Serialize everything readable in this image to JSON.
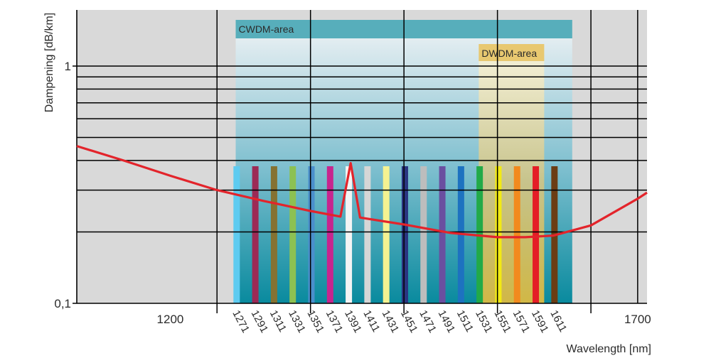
{
  "chart_data": {
    "type": "line",
    "xlabel": "Wavelength [nm]",
    "ylabel": "Dampening [dB/km]",
    "xlim": [
      1100,
      1710
    ],
    "ylim": [
      0.1,
      1.6
    ],
    "y_scale": "log",
    "x_ticks": [
      "1200",
      "1700"
    ],
    "y_ticks": [
      "0,1",
      "1"
    ],
    "grid": true,
    "areas": [
      {
        "label": "CWDM-area",
        "x_range": [
          1270,
          1630
        ],
        "color": "#57aebb"
      },
      {
        "label": "DWDM-area",
        "x_range": [
          1530,
          1600
        ],
        "color": "#e8c870"
      }
    ],
    "channels": [
      {
        "label": "1271",
        "x": 1271,
        "color": "#5ecbf0"
      },
      {
        "label": "1291",
        "x": 1291,
        "color": "#9c2a55"
      },
      {
        "label": "1311",
        "x": 1311,
        "color": "#857232"
      },
      {
        "label": "1331",
        "x": 1331,
        "color": "#8cc152"
      },
      {
        "label": "1351",
        "x": 1351,
        "color": "#4a8fcc"
      },
      {
        "label": "1371",
        "x": 1371,
        "color": "#c7258e"
      },
      {
        "label": "1391",
        "x": 1391,
        "color": "#f4f4f4"
      },
      {
        "label": "1411",
        "x": 1411,
        "color": "#d6d6d6"
      },
      {
        "label": "1431",
        "x": 1431,
        "color": "#f4f291"
      },
      {
        "label": "1451",
        "x": 1451,
        "color": "#2a3580"
      },
      {
        "label": "1471",
        "x": 1471,
        "color": "#bdbdbd"
      },
      {
        "label": "1491",
        "x": 1491,
        "color": "#6a4fa0"
      },
      {
        "label": "1511",
        "x": 1511,
        "color": "#1d72c0"
      },
      {
        "label": "1531",
        "x": 1531,
        "color": "#22aa48"
      },
      {
        "label": "1551",
        "x": 1551,
        "color": "#f2ea14"
      },
      {
        "label": "1571",
        "x": 1571,
        "color": "#f28a1e"
      },
      {
        "label": "1591",
        "x": 1591,
        "color": "#e41e26"
      },
      {
        "label": "1611",
        "x": 1611,
        "color": "#6b3d14"
      }
    ],
    "series": [
      {
        "color": "#e3242b",
        "points": [
          [
            1100,
            0.46
          ],
          [
            1150,
            0.4
          ],
          [
            1200,
            0.345
          ],
          [
            1250,
            0.3
          ],
          [
            1300,
            0.27
          ],
          [
            1350,
            0.245
          ],
          [
            1382,
            0.232
          ],
          [
            1393,
            0.39
          ],
          [
            1403,
            0.23
          ],
          [
            1450,
            0.215
          ],
          [
            1500,
            0.198
          ],
          [
            1550,
            0.19
          ],
          [
            1580,
            0.19
          ],
          [
            1610,
            0.193
          ],
          [
            1650,
            0.213
          ],
          [
            1700,
            0.276
          ],
          [
            1710,
            0.293
          ]
        ]
      }
    ]
  }
}
